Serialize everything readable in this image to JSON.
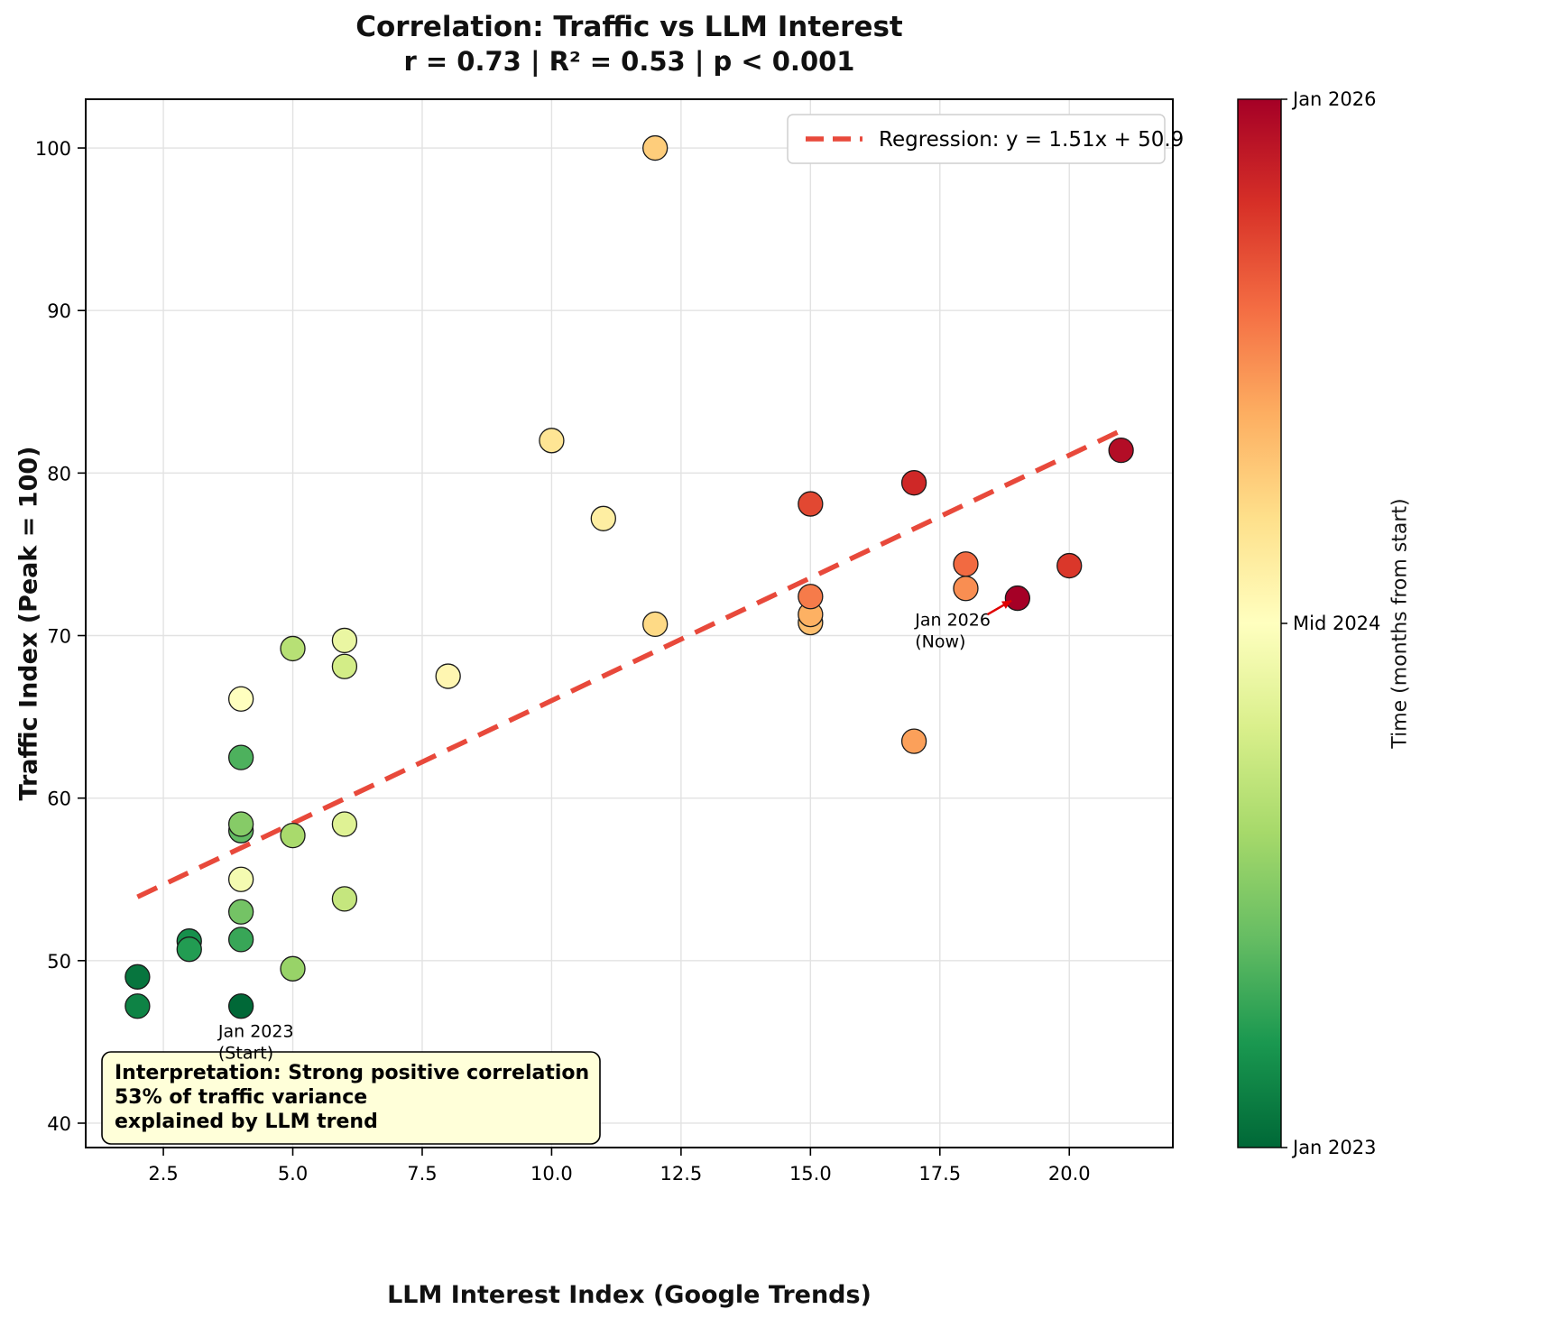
{
  "chart_data": {
    "type": "scatter",
    "title": "Correlation: Traffic vs LLM Interest",
    "subtitle": "r = 0.73 | R² = 0.53 | p < 0.001",
    "xlabel": "LLM Interest Index (Google Trends)",
    "ylabel": "Traffic Index (Peak = 100)",
    "xlim": [
      1.0,
      22.0
    ],
    "ylim": [
      38.5,
      103.0
    ],
    "xticks": [
      2.5,
      5.0,
      7.5,
      10.0,
      12.5,
      15.0,
      17.5,
      20.0
    ],
    "yticks": [
      40,
      50,
      60,
      70,
      80,
      90,
      100
    ],
    "grid": true,
    "marker_radius": 13.5,
    "months_total": 36,
    "points": [
      {
        "x": 4,
        "y": 47.2,
        "month": 0
      },
      {
        "x": 2,
        "y": 49.0,
        "month": 1
      },
      {
        "x": 2,
        "y": 47.2,
        "month": 2
      },
      {
        "x": 3,
        "y": 51.2,
        "month": 3
      },
      {
        "x": 3,
        "y": 50.7,
        "month": 4
      },
      {
        "x": 4,
        "y": 51.3,
        "month": 5
      },
      {
        "x": 4,
        "y": 62.5,
        "month": 6
      },
      {
        "x": 4,
        "y": 58.0,
        "month": 7
      },
      {
        "x": 4,
        "y": 53.0,
        "month": 8
      },
      {
        "x": 4,
        "y": 58.4,
        "month": 9
      },
      {
        "x": 5,
        "y": 49.5,
        "month": 10
      },
      {
        "x": 5,
        "y": 57.7,
        "month": 11
      },
      {
        "x": 5,
        "y": 69.2,
        "month": 12
      },
      {
        "x": 6,
        "y": 53.8,
        "month": 13
      },
      {
        "x": 6,
        "y": 68.1,
        "month": 14
      },
      {
        "x": 6,
        "y": 58.4,
        "month": 15
      },
      {
        "x": 6,
        "y": 69.7,
        "month": 16
      },
      {
        "x": 4,
        "y": 55.0,
        "month": 17
      },
      {
        "x": 4,
        "y": 66.1,
        "month": 18
      },
      {
        "x": 8,
        "y": 67.5,
        "month": 19
      },
      {
        "x": 11,
        "y": 77.2,
        "month": 20
      },
      {
        "x": 10,
        "y": 82.0,
        "month": 21
      },
      {
        "x": 12,
        "y": 70.7,
        "month": 22
      },
      {
        "x": 12,
        "y": 100.0,
        "month": 23
      },
      {
        "x": 15,
        "y": 70.8,
        "month": 24
      },
      {
        "x": 15,
        "y": 71.3,
        "month": 25
      },
      {
        "x": 17,
        "y": 63.5,
        "month": 26
      },
      {
        "x": 18,
        "y": 72.9,
        "month": 27
      },
      {
        "x": 15,
        "y": 72.4,
        "month": 28
      },
      {
        "x": 18,
        "y": 74.4,
        "month": 29
      },
      {
        "x": 15,
        "y": 78.1,
        "month": 31
      },
      {
        "x": 20,
        "y": 74.3,
        "month": 32
      },
      {
        "x": 17,
        "y": 79.4,
        "month": 33
      },
      {
        "x": 21,
        "y": 81.4,
        "month": 35
      },
      {
        "x": 19,
        "y": 72.3,
        "month": 36
      }
    ],
    "regression": {
      "label": "Regression: y = 1.51x + 50.9",
      "slope": 1.51,
      "intercept": 50.9,
      "x_start": 2,
      "x_end": 21,
      "color": "#e8493b"
    },
    "legend_position": "upper right",
    "colorbar": {
      "label": "Time (months from start)",
      "gradient_bottom_to_top": [
        "#006837",
        "#1a9850",
        "#66bd63",
        "#a6d96a",
        "#d9ef8b",
        "#ffffbf",
        "#fee08b",
        "#fdae61",
        "#f46d43",
        "#d73027",
        "#a50026"
      ],
      "ticks": [
        {
          "pos": 1.0,
          "label": "Jan 2026"
        },
        {
          "pos": 0.5,
          "label": "Mid 2024"
        },
        {
          "pos": 0.0,
          "label": "Jan 2023"
        }
      ]
    },
    "annotations": [
      {
        "lines": [
          "Jan 2023",
          "(Start)"
        ],
        "x": 3.56,
        "y": 45.3,
        "arrow": false
      },
      {
        "lines": [
          "Jan 2026",
          "(Now)"
        ],
        "x": 17.02,
        "y": 70.6,
        "arrow": true,
        "arrow_from": {
          "x": 18.42,
          "y": 71.3
        },
        "arrow_to": {
          "x": 18.88,
          "y": 72.15
        },
        "arrow_color": "#e00000"
      }
    ],
    "interpretation_box": {
      "lines": [
        "Interpretation: Strong positive correlation",
        "53% of traffic variance",
        "explained by LLM trend"
      ],
      "bg": "#ffffd9"
    }
  }
}
